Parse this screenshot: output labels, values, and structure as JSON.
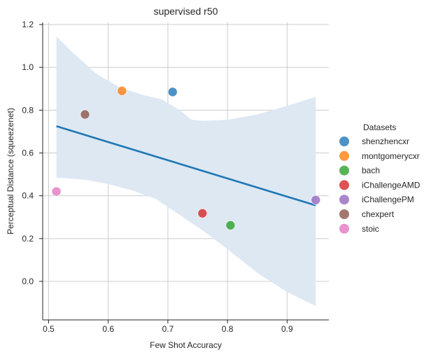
{
  "chart_data": {
    "type": "scatter",
    "title": "supervised r50",
    "xlabel": "Few Shot Accuracy",
    "ylabel": "Perceptual Distance (squeezenet)",
    "xlim": [
      0.49,
      0.97
    ],
    "ylim": [
      -0.18,
      1.21
    ],
    "xticks": [
      0.5,
      0.6,
      0.7,
      0.8,
      0.9
    ],
    "xtick_labels": [
      "0.5",
      "0.6",
      "0.7",
      "0.8",
      "0.9"
    ],
    "yticks": [
      0.0,
      0.2,
      0.4,
      0.6,
      0.8,
      1.0,
      1.2
    ],
    "ytick_labels": [
      "0.0",
      "0.2",
      "0.4",
      "0.6",
      "0.8",
      "1.0",
      "1.2"
    ],
    "grid": true,
    "legend": {
      "title": "Datasets",
      "placement": "right"
    },
    "series": [
      {
        "name": "shenzhencxr",
        "color": "#1f77b4",
        "x": 0.708,
        "y": 0.885
      },
      {
        "name": "montgomerycxr",
        "color": "#ff7f0e",
        "x": 0.623,
        "y": 0.89
      },
      {
        "name": "bach",
        "color": "#2ca02c",
        "x": 0.805,
        "y": 0.262
      },
      {
        "name": "iChallengeAMD",
        "color": "#d62728",
        "x": 0.758,
        "y": 0.318
      },
      {
        "name": "iChallengePM",
        "color": "#9467bd",
        "x": 0.948,
        "y": 0.38
      },
      {
        "name": "chexpert",
        "color": "#8c564b",
        "x": 0.561,
        "y": 0.78
      },
      {
        "name": "stoic",
        "color": "#e377c2",
        "x": 0.513,
        "y": 0.42
      }
    ],
    "regression": {
      "color": "#1f77b4",
      "line": [
        [
          0.513,
          0.725
        ],
        [
          0.948,
          0.355
        ]
      ],
      "band_upper": [
        [
          0.513,
          1.145
        ],
        [
          0.54,
          1.07
        ],
        [
          0.58,
          0.97
        ],
        [
          0.62,
          0.905
        ],
        [
          0.66,
          0.87
        ],
        [
          0.69,
          0.85
        ],
        [
          0.72,
          0.8
        ],
        [
          0.74,
          0.755
        ],
        [
          0.76,
          0.75
        ],
        [
          0.8,
          0.755
        ],
        [
          0.85,
          0.78
        ],
        [
          0.9,
          0.82
        ],
        [
          0.948,
          0.862
        ]
      ],
      "band_lower": [
        [
          0.513,
          0.485
        ],
        [
          0.56,
          0.475
        ],
        [
          0.6,
          0.455
        ],
        [
          0.64,
          0.425
        ],
        [
          0.68,
          0.385
        ],
        [
          0.72,
          0.31
        ],
        [
          0.76,
          0.235
        ],
        [
          0.8,
          0.15
        ],
        [
          0.85,
          0.04
        ],
        [
          0.9,
          -0.05
        ],
        [
          0.948,
          -0.115
        ]
      ],
      "band_color": "#dde8f3"
    }
  }
}
